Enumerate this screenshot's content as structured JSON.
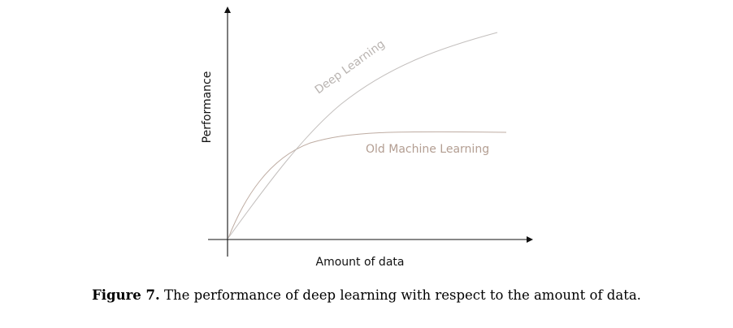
{
  "diagram": {
    "y_axis_label": "Performance",
    "x_axis_label": "Amount of data",
    "curves": [
      {
        "name": "Deep Learning",
        "color": "#b9b4b1"
      },
      {
        "name": "Old Machine Learning",
        "color": "#b39e92"
      }
    ],
    "axis_color": "#111111"
  },
  "caption": {
    "label": "Figure 7.",
    "text": "The performance of deep learning with respect to the amount of data."
  }
}
